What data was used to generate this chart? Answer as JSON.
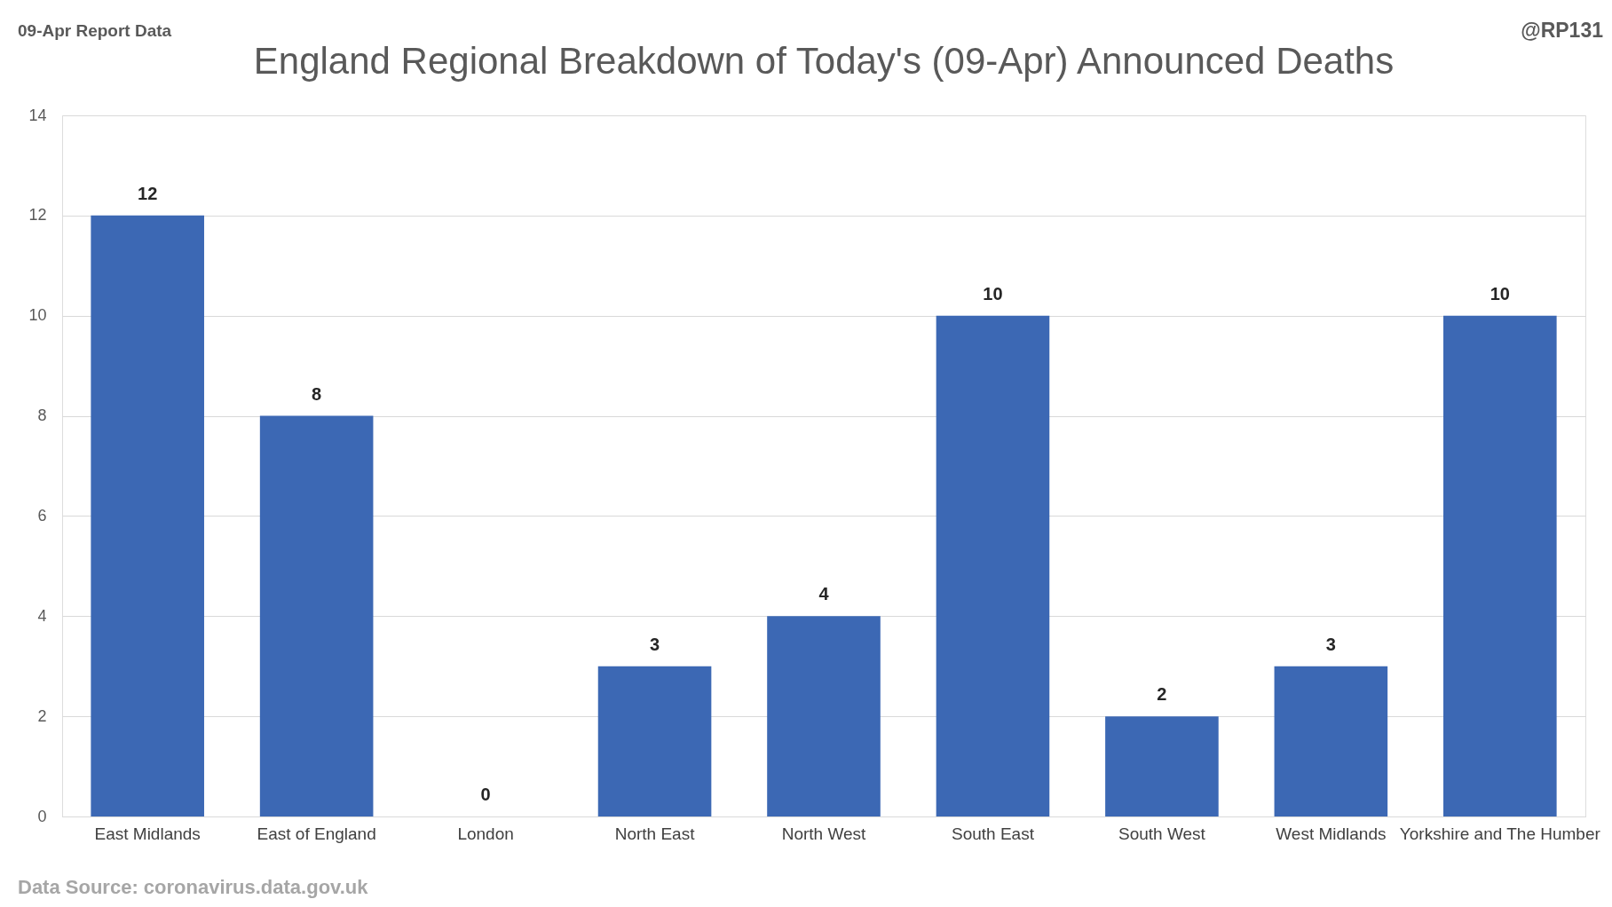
{
  "chart_data": {
    "type": "bar",
    "title": "England Regional Breakdown of Today's (09-Apr) Announced Deaths",
    "categories": [
      "East Midlands",
      "East of England",
      "London",
      "North East",
      "North West",
      "South East",
      "South West",
      "West Midlands",
      "Yorkshire and The Humber"
    ],
    "values": [
      12,
      8,
      0,
      3,
      4,
      10,
      2,
      3,
      10
    ],
    "color": "#3c68b4",
    "ylim": [
      0,
      14
    ],
    "yticks": [
      0,
      2,
      4,
      6,
      8,
      10,
      12,
      14
    ],
    "grid": "y",
    "data_labels": true,
    "annotations": [
      "09-Apr Report Data",
      "@RP131",
      "Data Source: coronavirus.data.gov.uk"
    ]
  }
}
